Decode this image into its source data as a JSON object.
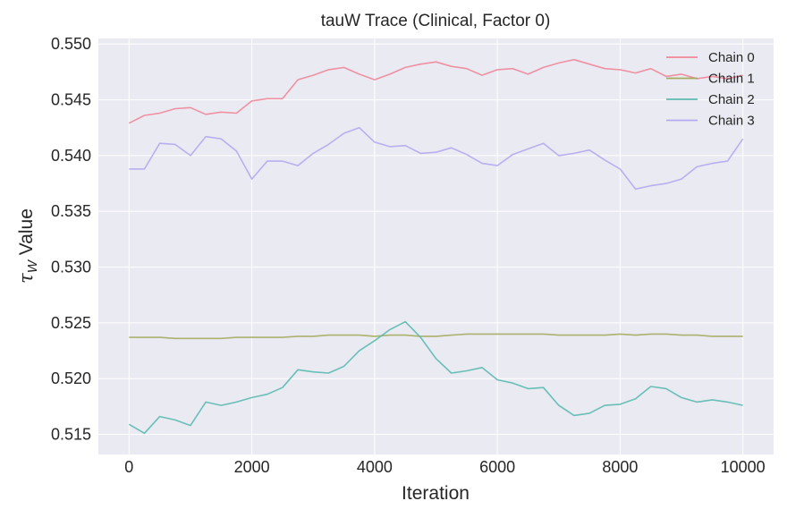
{
  "chart_data": {
    "type": "line",
    "title": "tauW Trace (Clinical, Factor 0)",
    "xlabel": "Iteration",
    "ylabel_symbol": "τ",
    "ylabel_subscript": "W",
    "ylabel_text": " Value",
    "xlim": [
      -500,
      10500
    ],
    "ylim": [
      0.5132,
      0.5505
    ],
    "xticks": [
      0,
      2000,
      4000,
      6000,
      8000,
      10000
    ],
    "xtick_labels": [
      "0",
      "2000",
      "4000",
      "6000",
      "8000",
      "10000"
    ],
    "yticks": [
      0.515,
      0.52,
      0.525,
      0.53,
      0.535,
      0.54,
      0.545,
      0.55
    ],
    "ytick_labels": [
      "0.515",
      "0.520",
      "0.525",
      "0.530",
      "0.535",
      "0.540",
      "0.545",
      "0.550"
    ],
    "grid": true,
    "legend_position": "top-right",
    "x": [
      0,
      250,
      500,
      750,
      1000,
      1250,
      1500,
      1750,
      2000,
      2250,
      2500,
      2750,
      3000,
      3250,
      3500,
      3750,
      4000,
      4250,
      4500,
      4750,
      5000,
      5250,
      5500,
      5750,
      6000,
      6250,
      6500,
      6750,
      7000,
      7250,
      7500,
      7750,
      8000,
      8250,
      8500,
      8750,
      9000,
      9250,
      9500,
      9750,
      10000
    ],
    "series": [
      {
        "name": "Chain 0",
        "color": "#f0879a",
        "values": [
          0.5429,
          0.5436,
          0.5438,
          0.5442,
          0.5443,
          0.5437,
          0.5439,
          0.5438,
          0.5449,
          0.5451,
          0.5451,
          0.5468,
          0.5472,
          0.5477,
          0.5479,
          0.5473,
          0.5468,
          0.5473,
          0.5479,
          0.5482,
          0.5484,
          0.548,
          0.5478,
          0.5472,
          0.5477,
          0.5478,
          0.5473,
          0.5479,
          0.5483,
          0.5486,
          0.5482,
          0.5478,
          0.5477,
          0.5474,
          0.5478,
          0.5471,
          0.5473,
          0.5469,
          0.5471,
          0.5469,
          0.5472
        ]
      },
      {
        "name": "Chain 1",
        "color": "#a5ab5f",
        "values": [
          0.5237,
          0.5237,
          0.5237,
          0.5236,
          0.5236,
          0.5236,
          0.5236,
          0.5237,
          0.5237,
          0.5237,
          0.5237,
          0.5238,
          0.5238,
          0.5239,
          0.5239,
          0.5239,
          0.5238,
          0.5239,
          0.5239,
          0.5238,
          0.5238,
          0.5239,
          0.524,
          0.524,
          0.524,
          0.524,
          0.524,
          0.524,
          0.5239,
          0.5239,
          0.5239,
          0.5239,
          0.524,
          0.5239,
          0.524,
          0.524,
          0.5239,
          0.5239,
          0.5238,
          0.5238,
          0.5238
        ]
      },
      {
        "name": "Chain 2",
        "color": "#5bbab0",
        "values": [
          0.5159,
          0.5151,
          0.5166,
          0.5163,
          0.5158,
          0.5179,
          0.5176,
          0.5179,
          0.5183,
          0.5186,
          0.5192,
          0.5208,
          0.5206,
          0.5205,
          0.5211,
          0.5225,
          0.5234,
          0.5244,
          0.5251,
          0.5237,
          0.5218,
          0.5205,
          0.5207,
          0.521,
          0.5199,
          0.5196,
          0.5191,
          0.5192,
          0.5176,
          0.5167,
          0.5169,
          0.5176,
          0.5177,
          0.5182,
          0.5193,
          0.5191,
          0.5183,
          0.5179,
          0.5181,
          0.5179,
          0.5176
        ]
      },
      {
        "name": "Chain 3",
        "color": "#b4a9ef",
        "values": [
          0.5388,
          0.5388,
          0.5411,
          0.541,
          0.54,
          0.5417,
          0.5415,
          0.5404,
          0.5379,
          0.5395,
          0.5395,
          0.5391,
          0.5402,
          0.541,
          0.542,
          0.5425,
          0.5412,
          0.5408,
          0.5409,
          0.5402,
          0.5403,
          0.5407,
          0.5401,
          0.5393,
          0.5391,
          0.5401,
          0.5406,
          0.5411,
          0.54,
          0.5402,
          0.5405,
          0.5396,
          0.5388,
          0.537,
          0.5373,
          0.5375,
          0.5379,
          0.539,
          0.5393,
          0.5395,
          0.5415
        ]
      }
    ]
  }
}
